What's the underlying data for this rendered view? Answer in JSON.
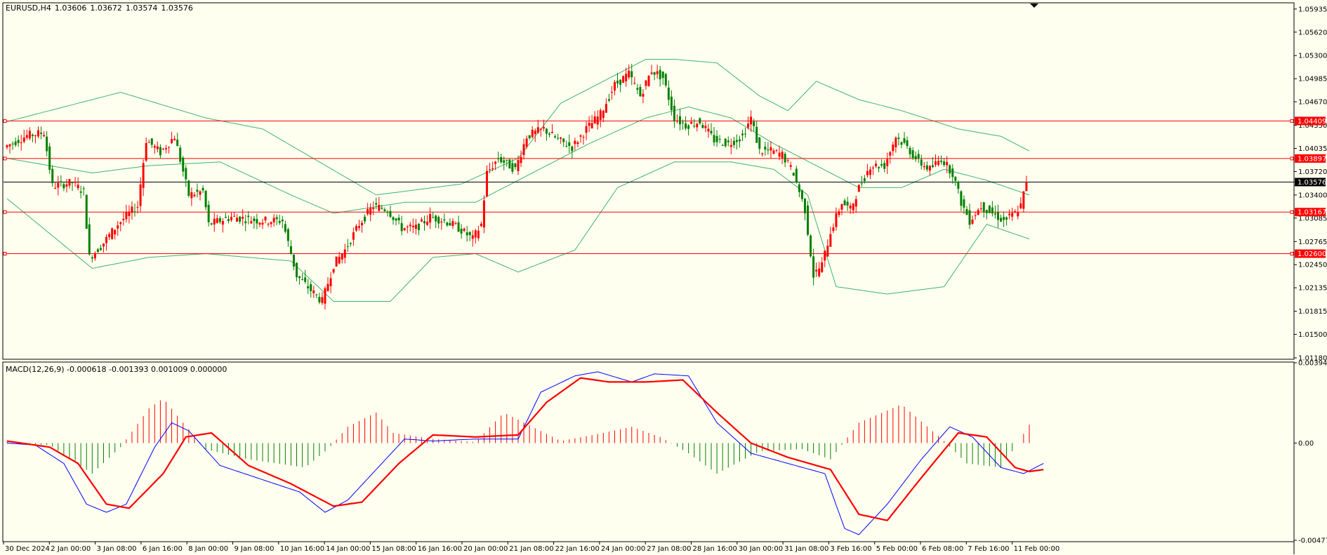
{
  "window": {
    "symbol": "EURUSD,H4",
    "ohlc": [
      "1.03606",
      "1.03672",
      "1.03574",
      "1.03576"
    ]
  },
  "price_axis": {
    "ticks": [
      "1.05935",
      "1.05620",
      "1.05300",
      "1.04985",
      "1.04670",
      "1.04350",
      "1.04035",
      "1.03720",
      "1.03400",
      "1.03085",
      "1.02765",
      "1.02450",
      "1.02135",
      "1.01815",
      "1.01500",
      "1.01180"
    ],
    "current_price": "1.03576"
  },
  "levels": [
    {
      "price": 1.04409,
      "label": "1.04409",
      "color": "#ff0000"
    },
    {
      "price": 1.03897,
      "label": "1.03897",
      "color": "#ff0000"
    },
    {
      "price": 1.03167,
      "label": "1.03167",
      "color": "#ff0000"
    },
    {
      "price": 1.026,
      "label": "1.02600",
      "color": "#ff0000"
    }
  ],
  "macd": {
    "label": "MACD(12,26,9) -0.000618 -0.001393 0.001009 0.000000",
    "ticks": [
      "0.003945",
      "0.00",
      "-0.004774"
    ]
  },
  "time_axis": {
    "labels": [
      "30 Dec 2024",
      "2 Jan 00:00",
      "3 Jan 08:00",
      "6 Jan 16:00",
      "8 Jan 00:00",
      "9 Jan 08:00",
      "10 Jan 16:00",
      "14 Jan 00:00",
      "15 Jan 08:00",
      "16 Jan 16:00",
      "20 Jan 00:00",
      "21 Jan 08:00",
      "22 Jan 16:00",
      "24 Jan 00:00",
      "27 Jan 08:00",
      "28 Jan 16:00",
      "30 Jan 00:00",
      "31 Jan 08:00",
      "3 Feb 16:00",
      "5 Feb 00:00",
      "6 Feb 08:00",
      "7 Feb 16:00",
      "11 Feb 00:00"
    ]
  },
  "colors": {
    "background": "#fffff0",
    "bull": "#ff0000",
    "bear": "#008000",
    "bands": "#3cb371",
    "macd_line": "#0000ff",
    "signal_line": "#ff0000",
    "current_line": "#000000"
  },
  "chart_data": {
    "type": "candlestick",
    "title": "EURUSD,H4",
    "ylim": [
      1.0118,
      1.0601
    ],
    "macd_ylim": [
      -0.004774,
      0.003945
    ],
    "anchors": [
      [
        0,
        1.0405
      ],
      [
        8,
        1.0421
      ],
      [
        14,
        1.0425
      ],
      [
        17,
        1.0352
      ],
      [
        24,
        1.0357
      ],
      [
        28,
        1.0344
      ],
      [
        30,
        1.0255
      ],
      [
        34,
        1.027
      ],
      [
        40,
        1.03
      ],
      [
        44,
        1.0315
      ],
      [
        47,
        1.0325
      ],
      [
        50,
        1.0415
      ],
      [
        55,
        1.0398
      ],
      [
        60,
        1.042
      ],
      [
        65,
        1.034
      ],
      [
        70,
        1.0345
      ],
      [
        72,
        1.03
      ],
      [
        80,
        1.031
      ],
      [
        90,
        1.0305
      ],
      [
        98,
        1.0305
      ],
      [
        103,
        1.023
      ],
      [
        108,
        1.021
      ],
      [
        112,
        1.0195
      ],
      [
        116,
        1.0245
      ],
      [
        120,
        1.0265
      ],
      [
        125,
        1.03
      ],
      [
        130,
        1.0325
      ],
      [
        135,
        1.032
      ],
      [
        140,
        1.0295
      ],
      [
        145,
        1.0295
      ],
      [
        150,
        1.031
      ],
      [
        155,
        1.0305
      ],
      [
        160,
        1.0295
      ],
      [
        165,
        1.028
      ],
      [
        168,
        1.03
      ],
      [
        170,
        1.037
      ],
      [
        174,
        1.039
      ],
      [
        180,
        1.0375
      ],
      [
        184,
        1.042
      ],
      [
        190,
        1.043
      ],
      [
        195,
        1.0415
      ],
      [
        200,
        1.0405
      ],
      [
        205,
        1.043
      ],
      [
        210,
        1.045
      ],
      [
        215,
        1.049
      ],
      [
        220,
        1.0505
      ],
      [
        224,
        1.0475
      ],
      [
        228,
        1.051
      ],
      [
        232,
        1.05
      ],
      [
        236,
        1.0445
      ],
      [
        240,
        1.0435
      ],
      [
        245,
        1.044
      ],
      [
        250,
        1.0415
      ],
      [
        255,
        1.041
      ],
      [
        260,
        1.042
      ],
      [
        263,
        1.0445
      ],
      [
        266,
        1.04
      ],
      [
        270,
        1.04
      ],
      [
        274,
        1.0395
      ],
      [
        278,
        1.037
      ],
      [
        282,
        1.032
      ],
      [
        285,
        1.023
      ],
      [
        288,
        1.0245
      ],
      [
        291,
        1.029
      ],
      [
        295,
        1.033
      ],
      [
        298,
        1.032
      ],
      [
        301,
        1.035
      ],
      [
        305,
        1.038
      ],
      [
        310,
        1.038
      ],
      [
        314,
        1.042
      ],
      [
        318,
        1.0405
      ],
      [
        322,
        1.0385
      ],
      [
        326,
        1.0375
      ],
      [
        330,
        1.039
      ],
      [
        334,
        1.037
      ],
      [
        337,
        1.033
      ],
      [
        340,
        1.0305
      ],
      [
        344,
        1.0325
      ],
      [
        348,
        1.0315
      ],
      [
        352,
        1.0305
      ],
      [
        356,
        1.0315
      ],
      [
        358,
        1.0325
      ],
      [
        360,
        1.0358
      ]
    ],
    "upper_band": [
      [
        0,
        1.044
      ],
      [
        40,
        1.048
      ],
      [
        70,
        1.0445
      ],
      [
        90,
        1.043
      ],
      [
        110,
        1.0385
      ],
      [
        130,
        1.034
      ],
      [
        160,
        1.0355
      ],
      [
        180,
        1.039
      ],
      [
        195,
        1.0465
      ],
      [
        210,
        1.0495
      ],
      [
        225,
        1.0525
      ],
      [
        235,
        1.0525
      ],
      [
        250,
        1.052
      ],
      [
        265,
        1.0475
      ],
      [
        275,
        1.0455
      ],
      [
        285,
        1.0495
      ],
      [
        300,
        1.047
      ],
      [
        315,
        1.0455
      ],
      [
        335,
        1.043
      ],
      [
        350,
        1.042
      ],
      [
        360,
        1.04
      ]
    ],
    "middle_band": [
      [
        0,
        1.039
      ],
      [
        30,
        1.037
      ],
      [
        50,
        1.038
      ],
      [
        75,
        1.0385
      ],
      [
        100,
        1.034
      ],
      [
        115,
        1.0315
      ],
      [
        140,
        1.033
      ],
      [
        165,
        1.033
      ],
      [
        185,
        1.037
      ],
      [
        205,
        1.041
      ],
      [
        225,
        1.0445
      ],
      [
        240,
        1.046
      ],
      [
        255,
        1.0445
      ],
      [
        270,
        1.041
      ],
      [
        285,
        1.038
      ],
      [
        300,
        1.035
      ],
      [
        315,
        1.035
      ],
      [
        330,
        1.0375
      ],
      [
        345,
        1.036
      ],
      [
        360,
        1.034
      ]
    ],
    "lower_band": [
      [
        0,
        1.0335
      ],
      [
        30,
        1.024
      ],
      [
        50,
        1.0255
      ],
      [
        70,
        1.026
      ],
      [
        100,
        1.025
      ],
      [
        115,
        1.0195
      ],
      [
        135,
        1.0195
      ],
      [
        150,
        1.0255
      ],
      [
        165,
        1.026
      ],
      [
        180,
        1.0235
      ],
      [
        200,
        1.0265
      ],
      [
        215,
        1.035
      ],
      [
        235,
        1.0385
      ],
      [
        255,
        1.0385
      ],
      [
        270,
        1.0375
      ],
      [
        282,
        1.034
      ],
      [
        292,
        1.0215
      ],
      [
        310,
        1.0205
      ],
      [
        330,
        1.0215
      ],
      [
        345,
        1.03
      ],
      [
        360,
        1.028
      ]
    ],
    "macd_hist": [
      [
        0,
        5e-05
      ],
      [
        15,
        -0.0001
      ],
      [
        30,
        -0.0015
      ],
      [
        40,
        -0.0002
      ],
      [
        50,
        0.0017
      ],
      [
        55,
        0.0022
      ],
      [
        62,
        0.001
      ],
      [
        70,
        -0.0003
      ],
      [
        85,
        -0.0008
      ],
      [
        105,
        -0.0012
      ],
      [
        113,
        -0.0003
      ],
      [
        120,
        0.0008
      ],
      [
        130,
        0.0015
      ],
      [
        136,
        0.0005
      ],
      [
        150,
        0.0002
      ],
      [
        165,
        5e-05
      ],
      [
        175,
        0.0015
      ],
      [
        185,
        0.0008
      ],
      [
        195,
        0.0001
      ],
      [
        210,
        0.0005
      ],
      [
        220,
        0.0008
      ],
      [
        230,
        0.0003
      ],
      [
        240,
        -0.0005
      ],
      [
        250,
        -0.0015
      ],
      [
        265,
        -0.0004
      ],
      [
        280,
        -0.0003
      ],
      [
        290,
        -0.0008
      ],
      [
        300,
        0.001
      ],
      [
        315,
        0.0019
      ],
      [
        330,
        0.0001
      ],
      [
        338,
        -0.001
      ],
      [
        350,
        -0.0012
      ],
      [
        356,
        0.0
      ],
      [
        360,
        0.0009
      ]
    ],
    "macd_line": [
      [
        0,
        0.0
      ],
      [
        10,
        -0.0001
      ],
      [
        20,
        -0.001
      ],
      [
        28,
        -0.003
      ],
      [
        35,
        -0.0034
      ],
      [
        42,
        -0.003
      ],
      [
        52,
        -0.0002
      ],
      [
        58,
        0.001
      ],
      [
        64,
        0.0006
      ],
      [
        75,
        -0.0011
      ],
      [
        90,
        -0.0018
      ],
      [
        103,
        -0.0024
      ],
      [
        112,
        -0.0034
      ],
      [
        120,
        -0.0028
      ],
      [
        132,
        -0.001
      ],
      [
        140,
        0.0002
      ],
      [
        150,
        0.0001
      ],
      [
        165,
        0.0002
      ],
      [
        180,
        0.0002
      ],
      [
        188,
        0.0025
      ],
      [
        200,
        0.0033
      ],
      [
        208,
        0.0035
      ],
      [
        220,
        0.003
      ],
      [
        228,
        0.0034
      ],
      [
        240,
        0.0033
      ],
      [
        250,
        0.001
      ],
      [
        262,
        -0.0005
      ],
      [
        275,
        -0.001
      ],
      [
        288,
        -0.0015
      ],
      [
        295,
        -0.0042
      ],
      [
        300,
        -0.0045
      ],
      [
        310,
        -0.003
      ],
      [
        322,
        -0.0008
      ],
      [
        332,
        0.0008
      ],
      [
        340,
        0.0003
      ],
      [
        350,
        -0.0012
      ],
      [
        358,
        -0.0015
      ],
      [
        365,
        -0.001
      ]
    ],
    "signal_line": [
      [
        0,
        0.0001
      ],
      [
        15,
        -0.0002
      ],
      [
        25,
        -0.001
      ],
      [
        35,
        -0.003
      ],
      [
        43,
        -0.0032
      ],
      [
        55,
        -0.0015
      ],
      [
        63,
        0.0003
      ],
      [
        72,
        0.0005
      ],
      [
        85,
        -0.0011
      ],
      [
        100,
        -0.002
      ],
      [
        115,
        -0.0031
      ],
      [
        125,
        -0.0029
      ],
      [
        138,
        -0.001
      ],
      [
        150,
        0.0004
      ],
      [
        165,
        0.0003
      ],
      [
        180,
        0.0004
      ],
      [
        190,
        0.002
      ],
      [
        202,
        0.0032
      ],
      [
        212,
        0.003
      ],
      [
        225,
        0.003
      ],
      [
        238,
        0.0031
      ],
      [
        250,
        0.0015
      ],
      [
        262,
        0.0
      ],
      [
        275,
        -0.0007
      ],
      [
        290,
        -0.0013
      ],
      [
        300,
        -0.0035
      ],
      [
        310,
        -0.0038
      ],
      [
        322,
        -0.0017
      ],
      [
        335,
        0.0005
      ],
      [
        345,
        0.0003
      ],
      [
        355,
        -0.0012
      ],
      [
        360,
        -0.0014
      ],
      [
        365,
        -0.0013
      ]
    ]
  }
}
